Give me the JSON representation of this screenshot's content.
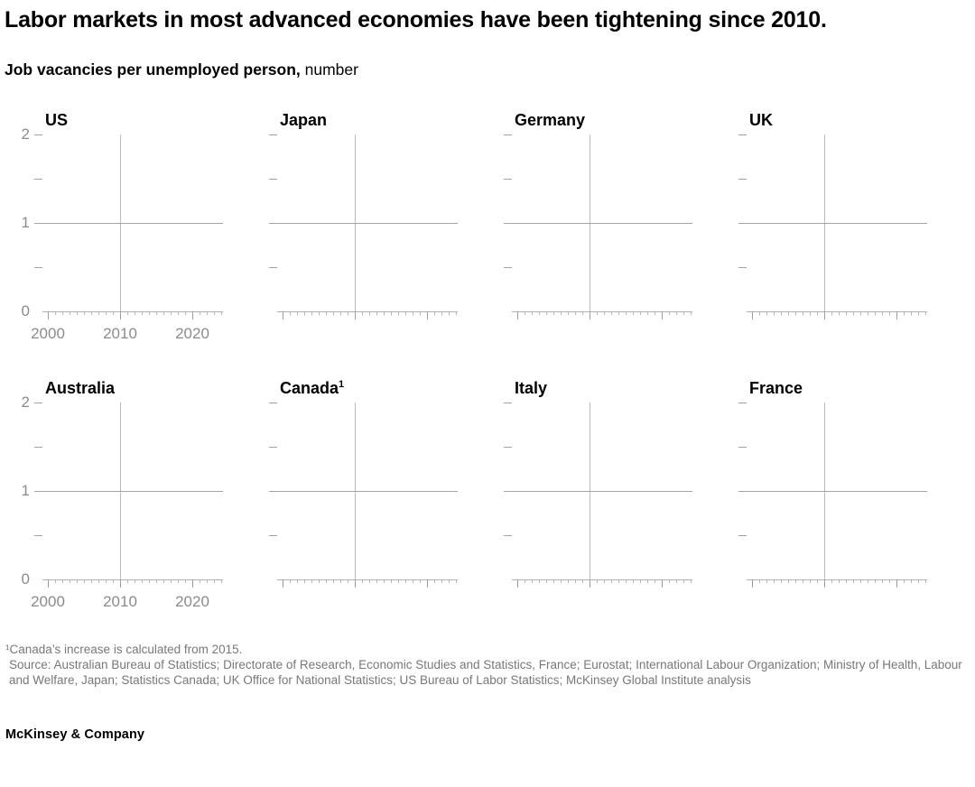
{
  "header": {
    "title": "Labor markets in most advanced economies have been tightening since 2010.",
    "subtitle_bold": "Job vacancies per unemployed person,",
    "subtitle_unit": "number"
  },
  "chart_data": {
    "type": "line",
    "layout": "small-multiples 2 rows x 4 columns, shared axes",
    "title": "Job vacancies per unemployed person",
    "ylabel": "number",
    "x_axis": {
      "range": [
        1999,
        2024.5
      ],
      "major_ticks": [
        2000,
        2010,
        2020
      ],
      "minor_tick_interval": 1,
      "tick_labels": [
        "2000",
        "2010",
        "2020"
      ]
    },
    "y_axis": {
      "range": [
        0,
        2
      ],
      "major_ticks": [
        2,
        1,
        0
      ],
      "minor_ticks": [
        1.5,
        0.5
      ],
      "tick_labels": [
        "2",
        "1",
        "0"
      ]
    },
    "reference_lines": {
      "horizontal_at_y": 1,
      "vertical_at_x": 2010
    },
    "grid": "off",
    "panels": [
      {
        "label": "US",
        "sup": "",
        "show_y_labels": true,
        "show_x_labels": true,
        "series": []
      },
      {
        "label": "Japan",
        "sup": "",
        "show_y_labels": false,
        "show_x_labels": false,
        "series": []
      },
      {
        "label": "Germany",
        "sup": "",
        "show_y_labels": false,
        "show_x_labels": false,
        "series": []
      },
      {
        "label": "UK",
        "sup": "",
        "show_y_labels": false,
        "show_x_labels": false,
        "series": []
      },
      {
        "label": "Australia",
        "sup": "",
        "show_y_labels": true,
        "show_x_labels": true,
        "series": []
      },
      {
        "label": "Canada",
        "sup": "1",
        "show_y_labels": false,
        "show_x_labels": false,
        "series": []
      },
      {
        "label": "Italy",
        "sup": "",
        "show_y_labels": false,
        "show_x_labels": false,
        "series": []
      },
      {
        "label": "France",
        "sup": "",
        "show_y_labels": false,
        "show_x_labels": false,
        "series": []
      }
    ],
    "note": "Panels show axes and reference lines only; no data series lines are rendered in this frame."
  },
  "notes": {
    "footnote": "¹Canada’s increase is calculated from 2015.",
    "source": "Source: Australian Bureau of Statistics; Directorate of Research, Economic Studies and Statistics, France; Eurostat; International Labour Organization; Ministry of Health, Labour and Welfare, Japan; Statistics Canada; UK Office for National Statistics; US Bureau of Labor Statistics; McKinsey Global Institute analysis"
  },
  "footer": {
    "brand": "McKinsey & Company"
  },
  "colors": {
    "background": "#ffffff",
    "text": "#000000",
    "axis_label": "#8c8c8c",
    "reference_line": "#a3a3a3",
    "vertical_line": "#bdbdbd",
    "axis_line": "#b0b0b0",
    "note_text": "#787878"
  }
}
